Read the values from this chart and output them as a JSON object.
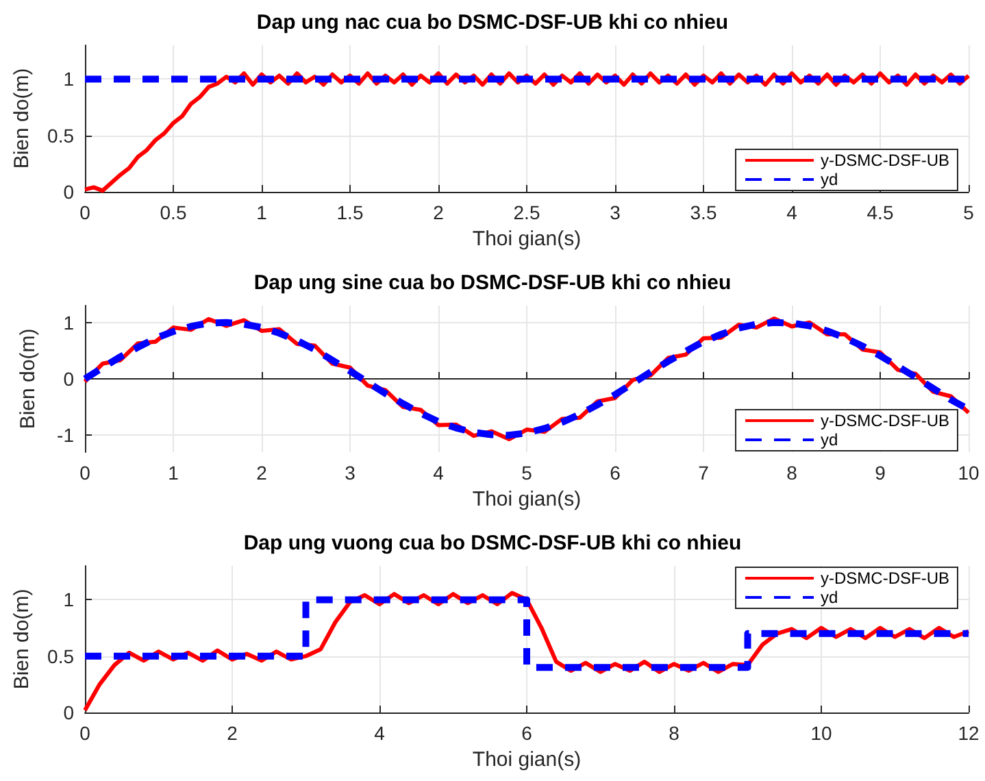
{
  "chart_data": [
    {
      "type": "line",
      "title": "Dap ung nac cua bo DSMC-DSF-UB khi co nhieu",
      "xlabel": "Thoi gian(s)",
      "ylabel": "Bien do(m)",
      "xlim": [
        0,
        5
      ],
      "xticks": [
        0,
        0.5,
        1,
        1.5,
        2,
        2.5,
        3,
        3.5,
        4,
        4.5,
        5
      ],
      "ylim": [
        0,
        1.3
      ],
      "yticks": [
        0,
        0.5,
        1
      ],
      "grid": true,
      "legend": "bottom right",
      "marker": "none",
      "series": [
        {
          "name": "y-DSMC-DSF-UB",
          "color": "#ff0000",
          "line_style": "solid",
          "x": [
            0,
            0.05,
            0.1,
            0.15,
            0.2,
            0.25,
            0.3,
            0.35,
            0.4,
            0.45,
            0.5,
            0.55,
            0.6,
            0.65,
            0.7,
            0.75,
            0.8,
            0.85,
            0.9,
            0.95,
            1,
            1.05,
            1.1,
            1.15,
            1.2,
            1.25,
            1.3,
            1.35,
            1.4,
            1.45,
            1.5,
            1.55,
            1.6,
            1.65,
            1.7,
            1.75,
            1.8,
            1.85,
            1.9,
            1.95,
            2,
            2.05,
            2.1,
            2.15,
            2.2,
            2.25,
            2.3,
            2.35,
            2.4,
            2.45,
            2.5,
            2.55,
            2.6,
            2.65,
            2.7,
            2.75,
            2.8,
            2.85,
            2.9,
            2.95,
            3,
            3.05,
            3.1,
            3.15,
            3.2,
            3.25,
            3.3,
            3.35,
            3.4,
            3.45,
            3.5,
            3.55,
            3.6,
            3.65,
            3.7,
            3.75,
            3.8,
            3.85,
            3.9,
            3.95,
            4,
            4.05,
            4.1,
            4.15,
            4.2,
            4.25,
            4.3,
            4.35,
            4.4,
            4.45,
            4.5,
            4.55,
            4.6,
            4.65,
            4.7,
            4.75,
            4.8,
            4.85,
            4.9,
            4.95,
            5
          ],
          "values": [
            0.02,
            0.04,
            0.01,
            0.08,
            0.15,
            0.21,
            0.31,
            0.37,
            0.46,
            0.52,
            0.61,
            0.67,
            0.78,
            0.84,
            0.93,
            0.96,
            1.02,
            0.97,
            1.05,
            0.95,
            1.04,
            0.97,
            1.03,
            0.96,
            1.05,
            0.97,
            1.02,
            0.95,
            1.04,
            0.97,
            1.03,
            0.96,
            1.05,
            0.96,
            1.03,
            0.97,
            1.04,
            0.95,
            1.03,
            0.97,
            1.05,
            0.96,
            1.04,
            0.97,
            1.03,
            0.95,
            1.04,
            0.96,
            1.05,
            0.97,
            1.03,
            0.96,
            1.04,
            0.95,
            1.03,
            0.97,
            1.05,
            0.96,
            1.04,
            0.97,
            1.03,
            0.95,
            1.04,
            0.96,
            1.05,
            0.97,
            1.03,
            0.96,
            1.04,
            0.95,
            1.03,
            0.97,
            1.05,
            0.96,
            1.04,
            0.97,
            1.03,
            0.95,
            1.04,
            0.96,
            1.05,
            0.97,
            1.03,
            0.96,
            1.04,
            0.95,
            1.03,
            0.97,
            1.04,
            0.96,
            1.05,
            0.97,
            1.03,
            0.95,
            1.04,
            0.96,
            1.03,
            0.97,
            1.04,
            0.96,
            1.03
          ]
        },
        {
          "name": "yd",
          "color": "#0000ff",
          "line_style": "dashed",
          "x": [
            0,
            5
          ],
          "values": [
            1,
            1
          ]
        }
      ]
    },
    {
      "type": "line",
      "title": "Dap ung sine cua bo DSMC-DSF-UB khi co nhieu",
      "xlabel": "Thoi gian(s)",
      "ylabel": "Bien do(m)",
      "xlim": [
        0,
        10
      ],
      "xticks": [
        0,
        1,
        2,
        3,
        4,
        5,
        6,
        7,
        8,
        9,
        10
      ],
      "ylim": [
        -1.3,
        1.3
      ],
      "yticks": [
        -1,
        0,
        1
      ],
      "grid": true,
      "legend": "bottom right",
      "marker": "none",
      "series": [
        {
          "name": "y-DSMC-DSF-UB",
          "color": "#ff0000",
          "line_style": "solid",
          "x": [
            0,
            0.2,
            0.4,
            0.6,
            0.8,
            1,
            1.2,
            1.4,
            1.6,
            1.8,
            2,
            2.2,
            2.4,
            2.6,
            2.8,
            3,
            3.2,
            3.4,
            3.6,
            3.8,
            4,
            4.2,
            4.4,
            4.6,
            4.8,
            5,
            5.2,
            5.4,
            5.6,
            5.8,
            6,
            6.2,
            6.4,
            6.6,
            6.8,
            7,
            7.2,
            7.4,
            7.6,
            7.8,
            8,
            8.2,
            8.4,
            8.6,
            8.8,
            9,
            9.2,
            9.4,
            9.6,
            9.8,
            10
          ],
          "values": [
            -0.05,
            0.27,
            0.33,
            0.63,
            0.66,
            0.91,
            0.87,
            1.06,
            0.94,
            1.04,
            0.85,
            0.88,
            0.62,
            0.59,
            0.27,
            0.2,
            -0.12,
            -0.2,
            -0.5,
            -0.55,
            -0.82,
            -0.81,
            -1.01,
            -0.93,
            -1.07,
            -0.9,
            -0.94,
            -0.71,
            -0.69,
            -0.4,
            -0.34,
            -0.02,
            0.06,
            0.37,
            0.43,
            0.72,
            0.73,
            0.96,
            0.91,
            1.07,
            0.93,
            1.0,
            0.79,
            0.79,
            0.52,
            0.47,
            0.16,
            0.09,
            -0.23,
            -0.31,
            -0.6
          ]
        },
        {
          "name": "yd",
          "color": "#0000ff",
          "line_style": "dashed",
          "x": [
            0,
            0.2,
            0.4,
            0.6,
            0.8,
            1,
            1.2,
            1.4,
            1.6,
            1.8,
            2,
            2.2,
            2.4,
            2.6,
            2.8,
            3,
            3.2,
            3.4,
            3.6,
            3.8,
            4,
            4.2,
            4.4,
            4.6,
            4.8,
            5,
            5.2,
            5.4,
            5.6,
            5.8,
            6,
            6.2,
            6.4,
            6.6,
            6.8,
            7,
            7.2,
            7.4,
            7.6,
            7.8,
            8,
            8.2,
            8.4,
            8.6,
            8.8,
            9,
            9.2,
            9.4,
            9.6,
            9.8,
            10
          ],
          "values": [
            0,
            0.2,
            0.39,
            0.56,
            0.72,
            0.84,
            0.93,
            0.99,
            1.0,
            0.97,
            0.91,
            0.81,
            0.68,
            0.52,
            0.33,
            0.14,
            -0.06,
            -0.26,
            -0.44,
            -0.61,
            -0.76,
            -0.87,
            -0.95,
            -0.99,
            -1.0,
            -0.96,
            -0.88,
            -0.77,
            -0.63,
            -0.46,
            -0.28,
            -0.08,
            0.12,
            0.31,
            0.49,
            0.66,
            0.79,
            0.9,
            0.97,
            1.0,
            0.99,
            0.94,
            0.85,
            0.73,
            0.58,
            0.41,
            0.22,
            0.03,
            -0.17,
            -0.37,
            -0.54
          ]
        }
      ]
    },
    {
      "type": "line",
      "title": "Dap ung vuong cua bo DSMC-DSF-UB khi co nhieu",
      "xlabel": "Thoi gian(s)",
      "ylabel": "Bien do(m)",
      "xlim": [
        0,
        12
      ],
      "xticks": [
        0,
        2,
        4,
        6,
        8,
        10,
        12
      ],
      "ylim": [
        0,
        1.3
      ],
      "yticks": [
        0,
        0.5,
        1
      ],
      "grid": true,
      "legend": "top right",
      "marker": "none",
      "series": [
        {
          "name": "y-DSMC-DSF-UB",
          "color": "#ff0000",
          "line_style": "solid",
          "x": [
            0,
            0.2,
            0.4,
            0.6,
            0.8,
            1,
            1.2,
            1.4,
            1.6,
            1.8,
            2,
            2.2,
            2.4,
            2.6,
            2.8,
            3,
            3.2,
            3.4,
            3.6,
            3.8,
            4,
            4.2,
            4.4,
            4.6,
            4.8,
            5,
            5.2,
            5.4,
            5.6,
            5.8,
            6,
            6.2,
            6.4,
            6.6,
            6.8,
            7,
            7.2,
            7.4,
            7.6,
            7.8,
            8,
            8.2,
            8.4,
            8.6,
            8.8,
            9,
            9.2,
            9.4,
            9.6,
            9.8,
            10,
            10.2,
            10.4,
            10.6,
            10.8,
            11,
            11.2,
            11.4,
            11.6,
            11.8,
            12
          ],
          "values": [
            0.02,
            0.25,
            0.42,
            0.53,
            0.46,
            0.54,
            0.47,
            0.53,
            0.46,
            0.55,
            0.47,
            0.52,
            0.46,
            0.54,
            0.47,
            0.5,
            0.56,
            0.8,
            0.98,
            1.04,
            0.96,
            1.05,
            0.97,
            1.04,
            0.96,
            1.05,
            0.97,
            1.04,
            0.96,
            1.06,
            1.0,
            0.75,
            0.45,
            0.37,
            0.44,
            0.36,
            0.43,
            0.37,
            0.45,
            0.36,
            0.43,
            0.37,
            0.44,
            0.36,
            0.43,
            0.42,
            0.6,
            0.7,
            0.74,
            0.66,
            0.75,
            0.67,
            0.74,
            0.66,
            0.75,
            0.67,
            0.74,
            0.66,
            0.75,
            0.67,
            0.72
          ]
        },
        {
          "name": "yd",
          "color": "#0000ff",
          "type": "step",
          "line_style": "dashed",
          "x": [
            0,
            3,
            6,
            9,
            12
          ],
          "values": [
            0.5,
            1,
            0.4,
            0.7,
            0.7
          ]
        }
      ]
    }
  ]
}
